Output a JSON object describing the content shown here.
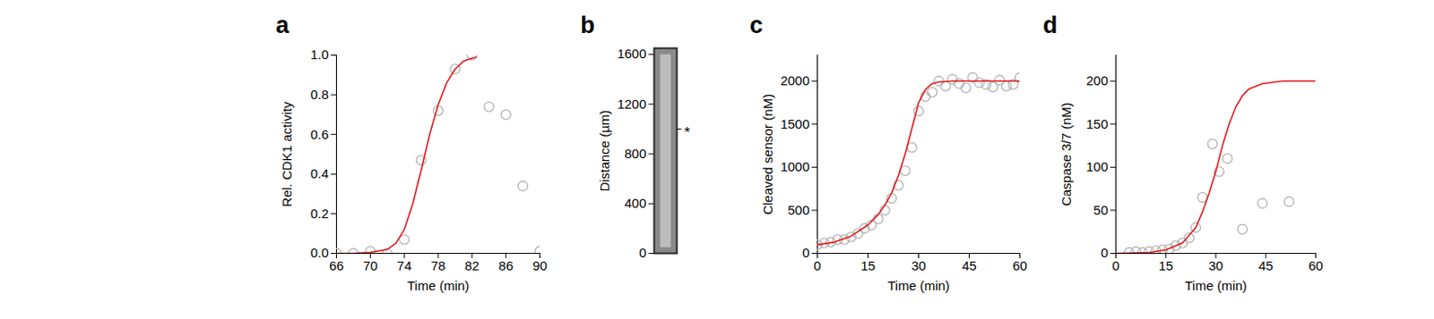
{
  "chart_data": [
    {
      "type": "scatter",
      "title": "a",
      "xlabel": "Time (min)",
      "ylabel": "Rel. CDK1 activity",
      "xlim": [
        66,
        90
      ],
      "xticks": [
        66,
        70,
        74,
        78,
        82,
        86,
        90
      ],
      "ylim": [
        0,
        1.0
      ],
      "yticks": [
        {
          "value": 0,
          "label": "0.0"
        },
        {
          "value": 0.2,
          "label": "0.2"
        },
        {
          "value": 0.4,
          "label": "0.4"
        },
        {
          "value": 0.6,
          "label": "0.6"
        },
        {
          "value": 0.8,
          "label": "0.8"
        },
        {
          "value": 1.0,
          "label": "1.0"
        }
      ],
      "grid": false,
      "series": [
        {
          "type": "scatter",
          "color": "#b3b3b3",
          "marker": "open_circle",
          "x": [
            66,
            68,
            70,
            72,
            74,
            76,
            78,
            80,
            82,
            84,
            86,
            88,
            90
          ],
          "values": [
            0.0,
            0.0,
            0.01,
            0.0,
            0.07,
            0.47,
            0.72,
            0.93,
            1.0,
            0.74,
            0.7,
            0.34,
            0.01
          ]
        },
        {
          "type": "line",
          "color": "#e31a1c",
          "line_style": "solid",
          "x": [
            66,
            68,
            70,
            72,
            73,
            74,
            75,
            76,
            77,
            78,
            79,
            80,
            81,
            82,
            82.5
          ],
          "values": [
            0.0,
            0.0,
            0.005,
            0.02,
            0.05,
            0.12,
            0.25,
            0.42,
            0.6,
            0.75,
            0.86,
            0.93,
            0.97,
            0.985,
            0.99
          ]
        }
      ]
    },
    {
      "type": "image",
      "title": "b",
      "ylabel": "Distance (µm)",
      "ylim": [
        0,
        1650
      ],
      "yticks": [
        0,
        400,
        800,
        1200,
        1600
      ],
      "tick_labels": "y",
      "annotations": [
        {
          "text": "*",
          "y": 1000
        }
      ]
    },
    {
      "type": "scatter",
      "title": "c",
      "xlabel": "Time (min)",
      "ylabel": "Cleaved sensor (nM)",
      "xlim": [
        0,
        60
      ],
      "xticks": [
        0,
        15,
        30,
        45,
        60
      ],
      "ylim": [
        0,
        2300
      ],
      "yticks": [
        0,
        500,
        1000,
        1500,
        2000
      ],
      "grid": false,
      "series": [
        {
          "type": "scatter",
          "color": "#b3b3b3",
          "marker": "open_circle",
          "x": [
            0,
            2,
            4,
            6,
            8,
            10,
            12,
            14,
            16,
            18,
            20,
            22,
            24,
            26,
            28,
            30,
            32,
            34,
            36,
            38,
            40,
            42,
            44,
            46,
            48,
            50,
            52,
            54,
            56,
            58,
            60
          ],
          "values": [
            100,
            120,
            130,
            160,
            160,
            190,
            230,
            290,
            330,
            400,
            500,
            640,
            790,
            960,
            1230,
            1650,
            1820,
            1870,
            2000,
            1940,
            2020,
            1970,
            1920,
            2040,
            1980,
            1960,
            1930,
            2010,
            1940,
            1960,
            2040
          ]
        },
        {
          "type": "line",
          "color": "#e31a1c",
          "line_style": "solid",
          "x": [
            0,
            5,
            10,
            15,
            18,
            20,
            22,
            24,
            26,
            28,
            30,
            32,
            34,
            36,
            40,
            50,
            60
          ],
          "values": [
            100,
            130,
            200,
            330,
            450,
            560,
            700,
            900,
            1150,
            1450,
            1750,
            1900,
            1970,
            1990,
            2000,
            2000,
            2000
          ]
        }
      ]
    },
    {
      "type": "scatter",
      "title": "d",
      "xlabel": "Time (min)",
      "ylabel": "Caspase 3/7 (nM)",
      "xlim": [
        0,
        60
      ],
      "xticks": [
        0,
        15,
        30,
        45,
        60
      ],
      "ylim": [
        0,
        230
      ],
      "yticks": [
        0,
        50,
        100,
        150,
        200
      ],
      "grid": false,
      "series": [
        {
          "type": "scatter",
          "color": "#b3b3b3",
          "marker": "open_circle",
          "x": [
            4,
            6,
            8,
            10,
            12,
            14,
            16,
            18,
            20,
            22,
            24,
            26,
            29,
            31,
            33.5,
            38,
            44,
            52
          ],
          "values": [
            1,
            2,
            1,
            2,
            3,
            4,
            5,
            9,
            12,
            18,
            30,
            65,
            127,
            95,
            110,
            28,
            58,
            60
          ]
        },
        {
          "type": "line",
          "color": "#e31a1c",
          "line_style": "solid",
          "x": [
            0,
            10,
            15,
            20,
            24,
            26,
            28,
            30,
            32,
            34,
            36,
            38,
            40,
            44,
            50,
            60
          ],
          "values": [
            0,
            1,
            4,
            12,
            30,
            48,
            70,
            95,
            125,
            150,
            170,
            183,
            191,
            197,
            200,
            200
          ]
        }
      ]
    }
  ]
}
